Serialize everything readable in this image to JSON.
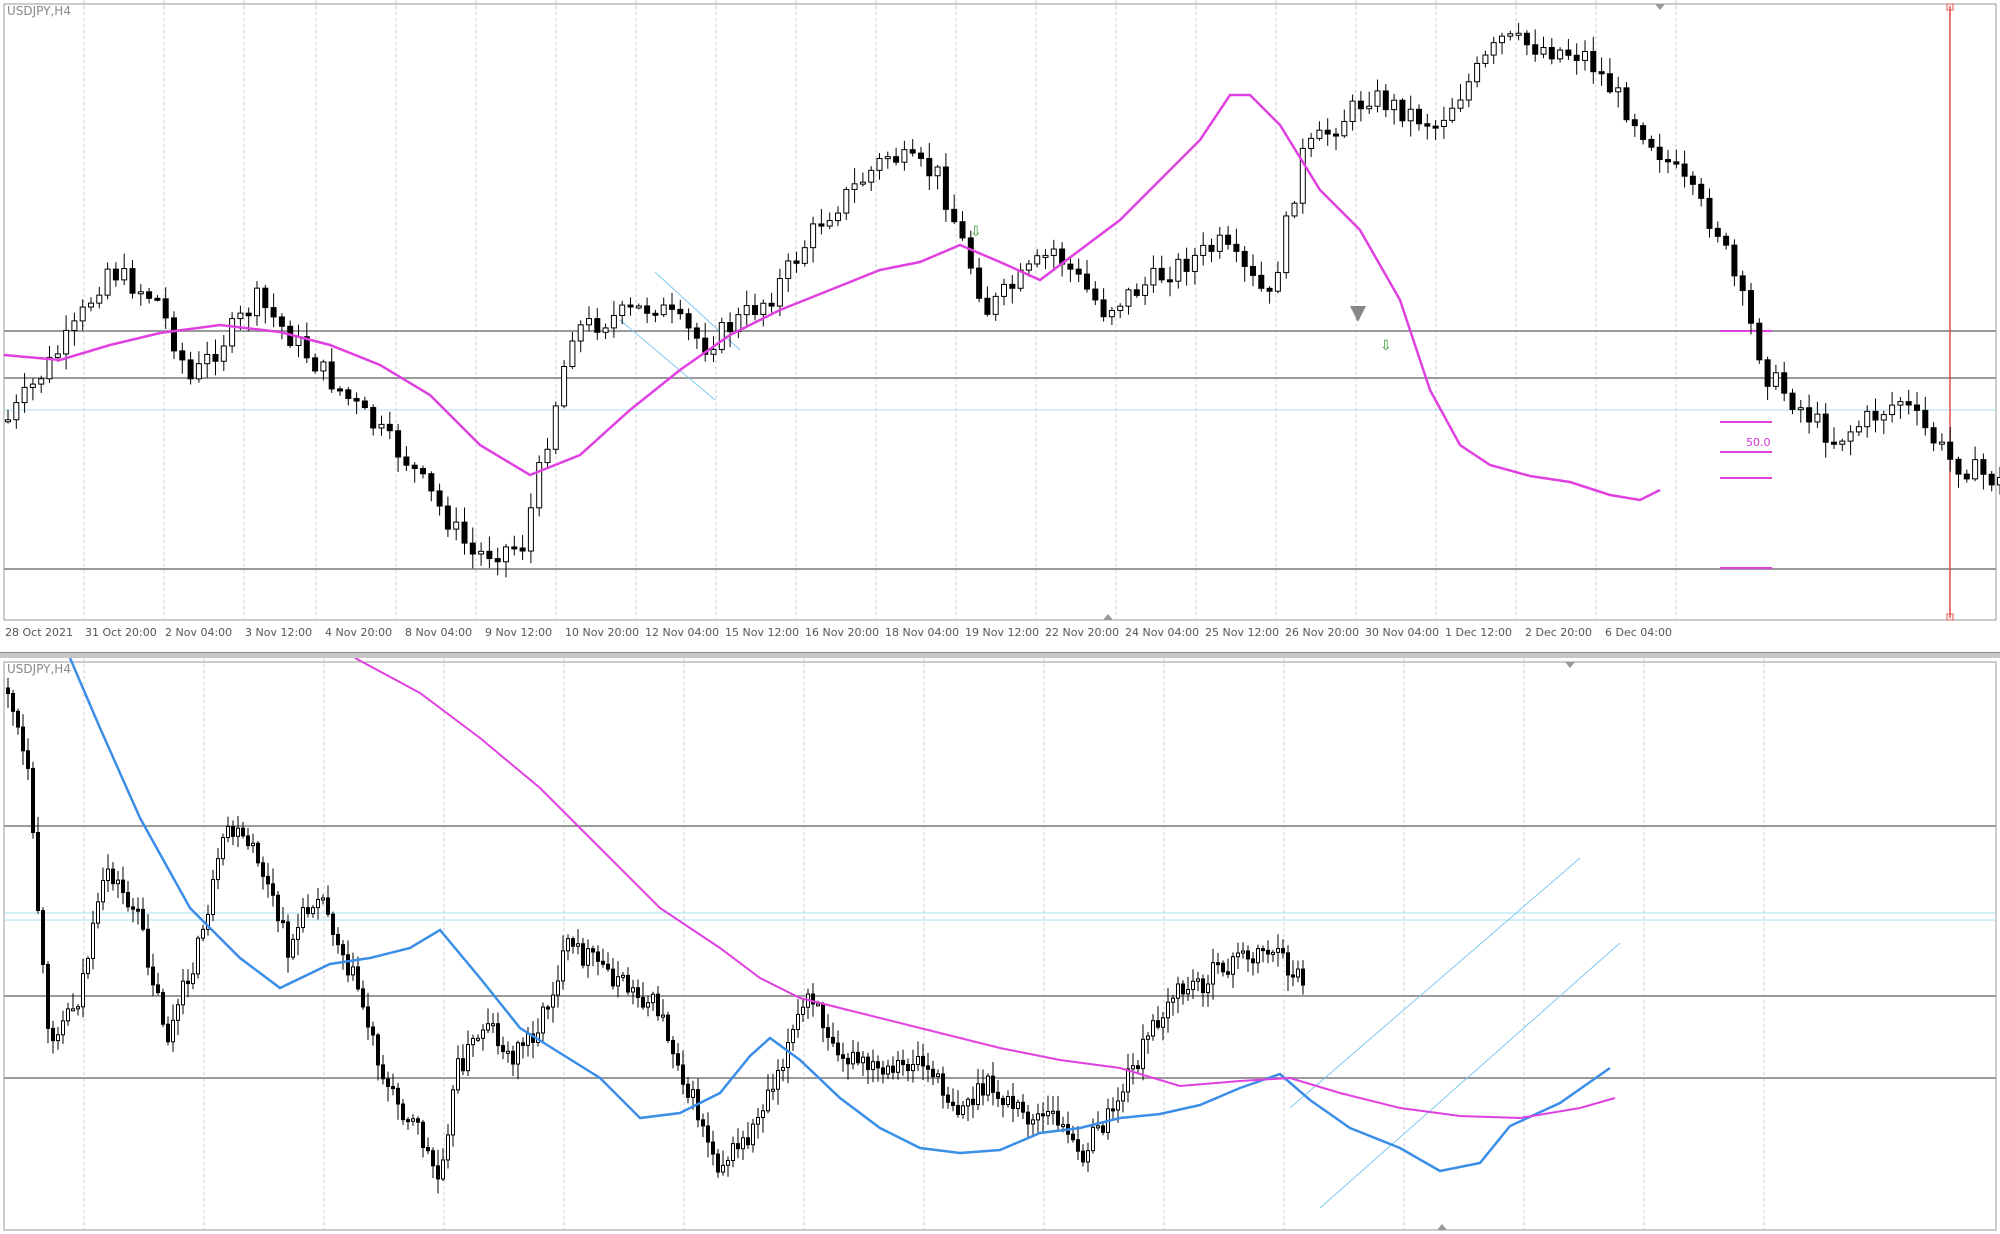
{
  "top_chart": {
    "symbol_label": "USDJPY,H4",
    "fib_label": "50.0",
    "x_labels": [
      "28 Oct 2021",
      "31 Oct 20:00",
      "2 Nov 04:00",
      "3 Nov 12:00",
      "4 Nov 20:00",
      "8 Nov 04:00",
      "9 Nov 12:00",
      "10 Nov 20:00",
      "12 Nov 04:00",
      "15 Nov 12:00",
      "16 Nov 20:00",
      "18 Nov 04:00",
      "19 Nov 12:00",
      "22 Nov 20:00",
      "24 Nov 04:00",
      "25 Nov 12:00",
      "26 Nov 20:00",
      "30 Nov 04:00",
      "1 Dec 12:00",
      "2 Dec 20:00",
      "6 Dec 04:00"
    ]
  },
  "bottom_chart": {
    "symbol_label": "USDJPY,H4"
  },
  "colors": {
    "bull_fill": "#ffffff",
    "bear_fill": "#000000",
    "ma_magenta": "#e040e0",
    "ma_blue": "#3a8ee8",
    "hline_gray": "#9a9a9a",
    "hline_cyan": "#a9dff0",
    "channel_blue": "#7ec8f0",
    "vline_red": "#e05050",
    "arrow_green": "#2a9a2a"
  }
}
